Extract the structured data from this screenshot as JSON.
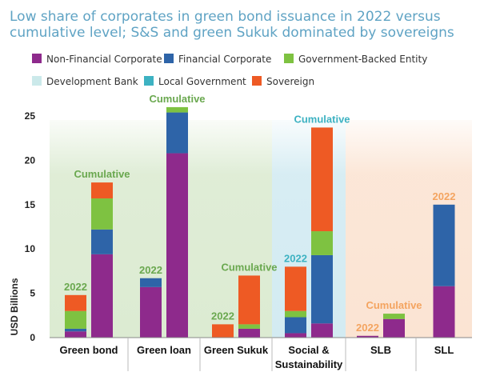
{
  "chart_data": {
    "type": "bar",
    "stacked": true,
    "title": "Low share of corporates in green bond issuance in 2022 versus cumulative level; S&S and green Sukuk dominated by sovereigns",
    "title_lines": [
      "Low share of corporates in green bond issuance in 2022 versus",
      "cumulative level; S&S and green Sukuk dominated by sovereigns"
    ],
    "ylabel": "USD Billions",
    "ylim": [
      0,
      25
    ],
    "yticks": [
      0,
      5,
      10,
      15,
      20,
      25
    ],
    "legend_position": "top",
    "series": [
      {
        "key": "nfc",
        "name": "Non-Financial Corporate",
        "color": "#8e2a8c"
      },
      {
        "key": "fc",
        "name": "Financial Corporate",
        "color": "#2e64a8"
      },
      {
        "key": "gbe",
        "name": "Government-Backed Entity",
        "color": "#7ec241"
      },
      {
        "key": "db",
        "name": "Development Bank",
        "color": "#cbe9ea"
      },
      {
        "key": "lg",
        "name": "Local Government",
        "color": "#3db2c2"
      },
      {
        "key": "sov",
        "name": "Sovereign",
        "color": "#ee5a24"
      }
    ],
    "categories": [
      {
        "label_lines": [
          "Green bond"
        ],
        "band_color": "#dcebd2"
      },
      {
        "label_lines": [
          "Green loan"
        ],
        "band_color": "#dcebd2"
      },
      {
        "label_lines": [
          "Green Sukuk"
        ],
        "band_color": "#dcebd2"
      },
      {
        "label_lines": [
          "Social &",
          "Sustainability"
        ],
        "band_color": "#d3ebf2"
      },
      {
        "label_lines": [
          "SLB"
        ],
        "band_color": "#fbe4d3"
      },
      {
        "label_lines": [
          "SLL"
        ],
        "band_color": "#fbe4d3"
      }
    ],
    "bars": [
      {
        "category": 0,
        "label": "2022",
        "label_color": "#6aa84f",
        "values": {
          "nfc": 0.7,
          "fc": 0.3,
          "gbe": 2.0,
          "db": 0,
          "lg": 0,
          "sov": 1.8
        }
      },
      {
        "category": 0,
        "label": "Cumulative",
        "label_color": "#6aa84f",
        "values": {
          "nfc": 9.4,
          "fc": 2.8,
          "gbe": 3.5,
          "db": 0,
          "lg": 0,
          "sov": 1.8
        }
      },
      {
        "category": 1,
        "label": "2022",
        "label_color": "#6aa84f",
        "values": {
          "nfc": 5.7,
          "fc": 1.0,
          "gbe": 0,
          "db": 0,
          "lg": 0,
          "sov": 0
        }
      },
      {
        "category": 1,
        "label": "Cumulative",
        "label_color": "#6aa84f",
        "values": {
          "nfc": 20.8,
          "fc": 4.6,
          "gbe": 0.6,
          "db": 0,
          "lg": 0,
          "sov": 0
        }
      },
      {
        "category": 2,
        "label": "2022",
        "label_color": "#6aa84f",
        "values": {
          "nfc": 0,
          "fc": 0,
          "gbe": 0,
          "db": 0,
          "lg": 0,
          "sov": 1.5
        }
      },
      {
        "category": 2,
        "label": "Cumulative",
        "label_color": "#6aa84f",
        "values": {
          "nfc": 1.0,
          "fc": 0,
          "gbe": 0.5,
          "db": 0,
          "lg": 0,
          "sov": 5.5
        }
      },
      {
        "category": 3,
        "label": "2022",
        "label_color": "#3db2c2",
        "values": {
          "nfc": 0.5,
          "fc": 1.8,
          "gbe": 0.7,
          "db": 0,
          "lg": 0,
          "sov": 5.0
        }
      },
      {
        "category": 3,
        "label": "Cumulative",
        "label_color": "#3db2c2",
        "values": {
          "nfc": 1.6,
          "fc": 7.7,
          "gbe": 2.7,
          "db": 0,
          "lg": 0,
          "sov": 11.7
        }
      },
      {
        "category": 4,
        "label": "2022",
        "label_color": "#f4a460",
        "values": {
          "nfc": 0.2,
          "fc": 0,
          "gbe": 0,
          "db": 0,
          "lg": 0,
          "sov": 0
        }
      },
      {
        "category": 4,
        "label": "Cumulative",
        "label_color": "#f4a460",
        "values": {
          "nfc": 2.1,
          "fc": 0,
          "gbe": 0.6,
          "db": 0,
          "lg": 0,
          "sov": 0
        }
      },
      {
        "category": 5,
        "label": "2022",
        "label_color": "#f4a460",
        "values": {
          "nfc": 5.8,
          "fc": 9.2,
          "gbe": 0,
          "db": 0,
          "lg": 0,
          "sov": 0
        }
      }
    ]
  }
}
